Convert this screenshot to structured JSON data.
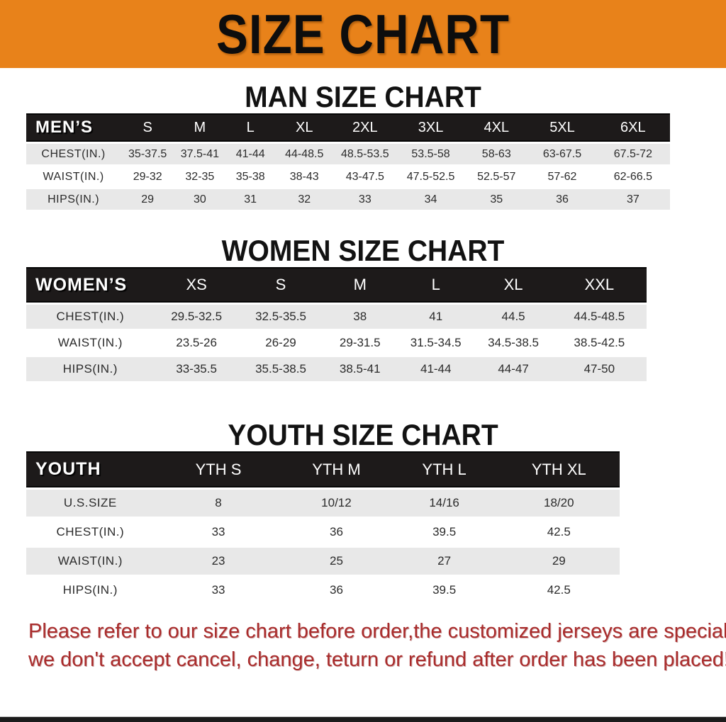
{
  "banner": {
    "title": "SIZE CHART"
  },
  "sections": [
    {
      "heading": "MAN SIZE CHART",
      "table": {
        "label": "MEN’S",
        "columns": [
          "S",
          "M",
          "L",
          "XL",
          "2XL",
          "3XL",
          "4XL",
          "5XL",
          "6XL"
        ],
        "rows": [
          {
            "label": "CHEST(IN.)",
            "values": [
              "35-37.5",
              "37.5-41",
              "41-44",
              "44-48.5",
              "48.5-53.5",
              "53.5-58",
              "58-63",
              "63-67.5",
              "67.5-72"
            ]
          },
          {
            "label": "WAIST(IN.)",
            "values": [
              "29-32",
              "32-35",
              "35-38",
              "38-43",
              "43-47.5",
              "47.5-52.5",
              "52.5-57",
              "57-62",
              "62-66.5"
            ]
          },
          {
            "label": "HIPS(IN.)",
            "values": [
              "29",
              "30",
              "31",
              "32",
              "33",
              "34",
              "35",
              "36",
              "37"
            ]
          }
        ]
      }
    },
    {
      "heading": "WOMEN SIZE CHART",
      "table": {
        "label": "WOMEN’S",
        "columns": [
          "XS",
          "S",
          "M",
          "L",
          "XL",
          "XXL"
        ],
        "rows": [
          {
            "label": "CHEST(IN.)",
            "values": [
              "29.5-32.5",
              "32.5-35.5",
              "38",
              "41",
              "44.5",
              "44.5-48.5"
            ]
          },
          {
            "label": "WAIST(IN.)",
            "values": [
              "23.5-26",
              "26-29",
              "29-31.5",
              "31.5-34.5",
              "34.5-38.5",
              "38.5-42.5"
            ]
          },
          {
            "label": "HIPS(IN.)",
            "values": [
              "33-35.5",
              "35.5-38.5",
              "38.5-41",
              "41-44",
              "44-47",
              "47-50"
            ]
          }
        ]
      }
    },
    {
      "heading": "YOUTH SIZE CHART",
      "table": {
        "label": "YOUTH",
        "columns": [
          "YTH S",
          "YTH M",
          "YTH L",
          "YTH XL"
        ],
        "rows": [
          {
            "label": "U.S.SIZE",
            "values": [
              "8",
              "10/12",
              "14/16",
              "18/20"
            ]
          },
          {
            "label": "CHEST(IN.)",
            "values": [
              "33",
              "36",
              "39.5",
              "42.5"
            ]
          },
          {
            "label": "WAIST(IN.)",
            "values": [
              "23",
              "25",
              "27",
              "29"
            ]
          },
          {
            "label": "HIPS(IN.)",
            "values": [
              "33",
              "36",
              "39.5",
              "42.5"
            ]
          }
        ]
      }
    }
  ],
  "footer": {
    "line1": "Please refer to our size chart before order,the customized jerseys are special products,",
    "line2": "we don't accept cancel, change, teturn or refund after order has been placed!"
  },
  "colors": {
    "banner_orange": "#e8821a",
    "header_black": "#1d1a1a",
    "row_gray": "#e8e8e8",
    "note_red": "#a92c2c"
  }
}
